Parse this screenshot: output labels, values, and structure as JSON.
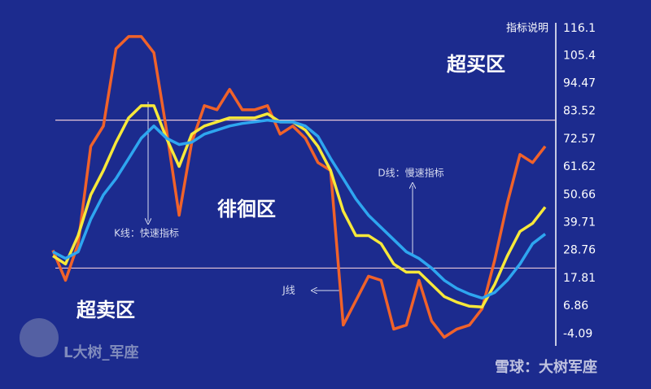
{
  "chart_data": {
    "type": "line",
    "x": [
      0,
      1,
      2,
      3,
      4,
      5,
      6,
      7,
      8,
      9,
      10,
      11,
      12,
      13,
      14,
      15,
      16,
      17,
      18,
      19,
      20,
      21,
      22,
      23,
      24,
      25,
      26,
      27,
      28,
      29,
      30,
      31,
      32,
      33,
      34,
      35,
      36,
      37,
      38,
      39
    ],
    "xlim": [
      0,
      39
    ],
    "series": [
      {
        "name": "J",
        "color": "#f0622a",
        "values": [
          28.8,
          17.0,
          31.4,
          69.7,
          77.7,
          108.1,
          112.9,
          112.9,
          106.5,
          76.1,
          42.6,
          71.3,
          85.7,
          84.1,
          92.1,
          84.1,
          84.1,
          85.7,
          74.5,
          77.7,
          72.9,
          63.3,
          60.2,
          -0.6,
          9.0,
          18.6,
          17.0,
          -2.2,
          -0.6,
          17.0,
          1.0,
          -5.4,
          -2.2,
          -0.6,
          5.8,
          25.0,
          47.4,
          66.5,
          63.3,
          69.7
        ]
      },
      {
        "name": "K",
        "color": "#f7e83a",
        "values": [
          26.6,
          23.4,
          34.6,
          50.6,
          60.2,
          71.3,
          80.9,
          85.7,
          85.7,
          72.9,
          61.8,
          74.5,
          77.7,
          79.3,
          80.9,
          80.9,
          80.9,
          82.5,
          79.3,
          79.3,
          76.1,
          69.7,
          60.2,
          44.2,
          34.6,
          34.6,
          31.4,
          23.4,
          20.2,
          20.2,
          15.4,
          10.6,
          8.4,
          6.8,
          6.5,
          15.4,
          26.6,
          36.2,
          39.4,
          45.8
        ]
      },
      {
        "name": "D",
        "color": "#2ea6f0",
        "values": [
          28.2,
          25.6,
          28.2,
          41.0,
          50.6,
          57.0,
          64.9,
          72.9,
          77.7,
          72.9,
          70.4,
          71.3,
          74.5,
          76.1,
          77.7,
          78.7,
          79.3,
          80.0,
          79.3,
          79.3,
          77.7,
          73.6,
          64.9,
          57.0,
          49.0,
          42.6,
          37.8,
          33.0,
          28.2,
          25.6,
          21.8,
          17.0,
          13.8,
          11.6,
          10.0,
          12.2,
          17.0,
          23.4,
          31.4,
          35.2
        ]
      }
    ],
    "ylim": [
      -20,
      121.5
    ],
    "yticks": [
      116.1,
      105.4,
      94.47,
      83.52,
      72.57,
      61.62,
      50.66,
      39.71,
      28.76,
      17.81,
      6.86,
      -4.09
    ],
    "hlines": [
      80.0,
      21.8
    ],
    "axis_title": "指标说明",
    "annotations": [
      "超买区",
      "徘徊区",
      "超卖区",
      "K线：快速指标",
      "D线：慢速指标",
      "J线"
    ],
    "watermarks": [
      "L大树_军座",
      "雪球：大树军座"
    ]
  }
}
